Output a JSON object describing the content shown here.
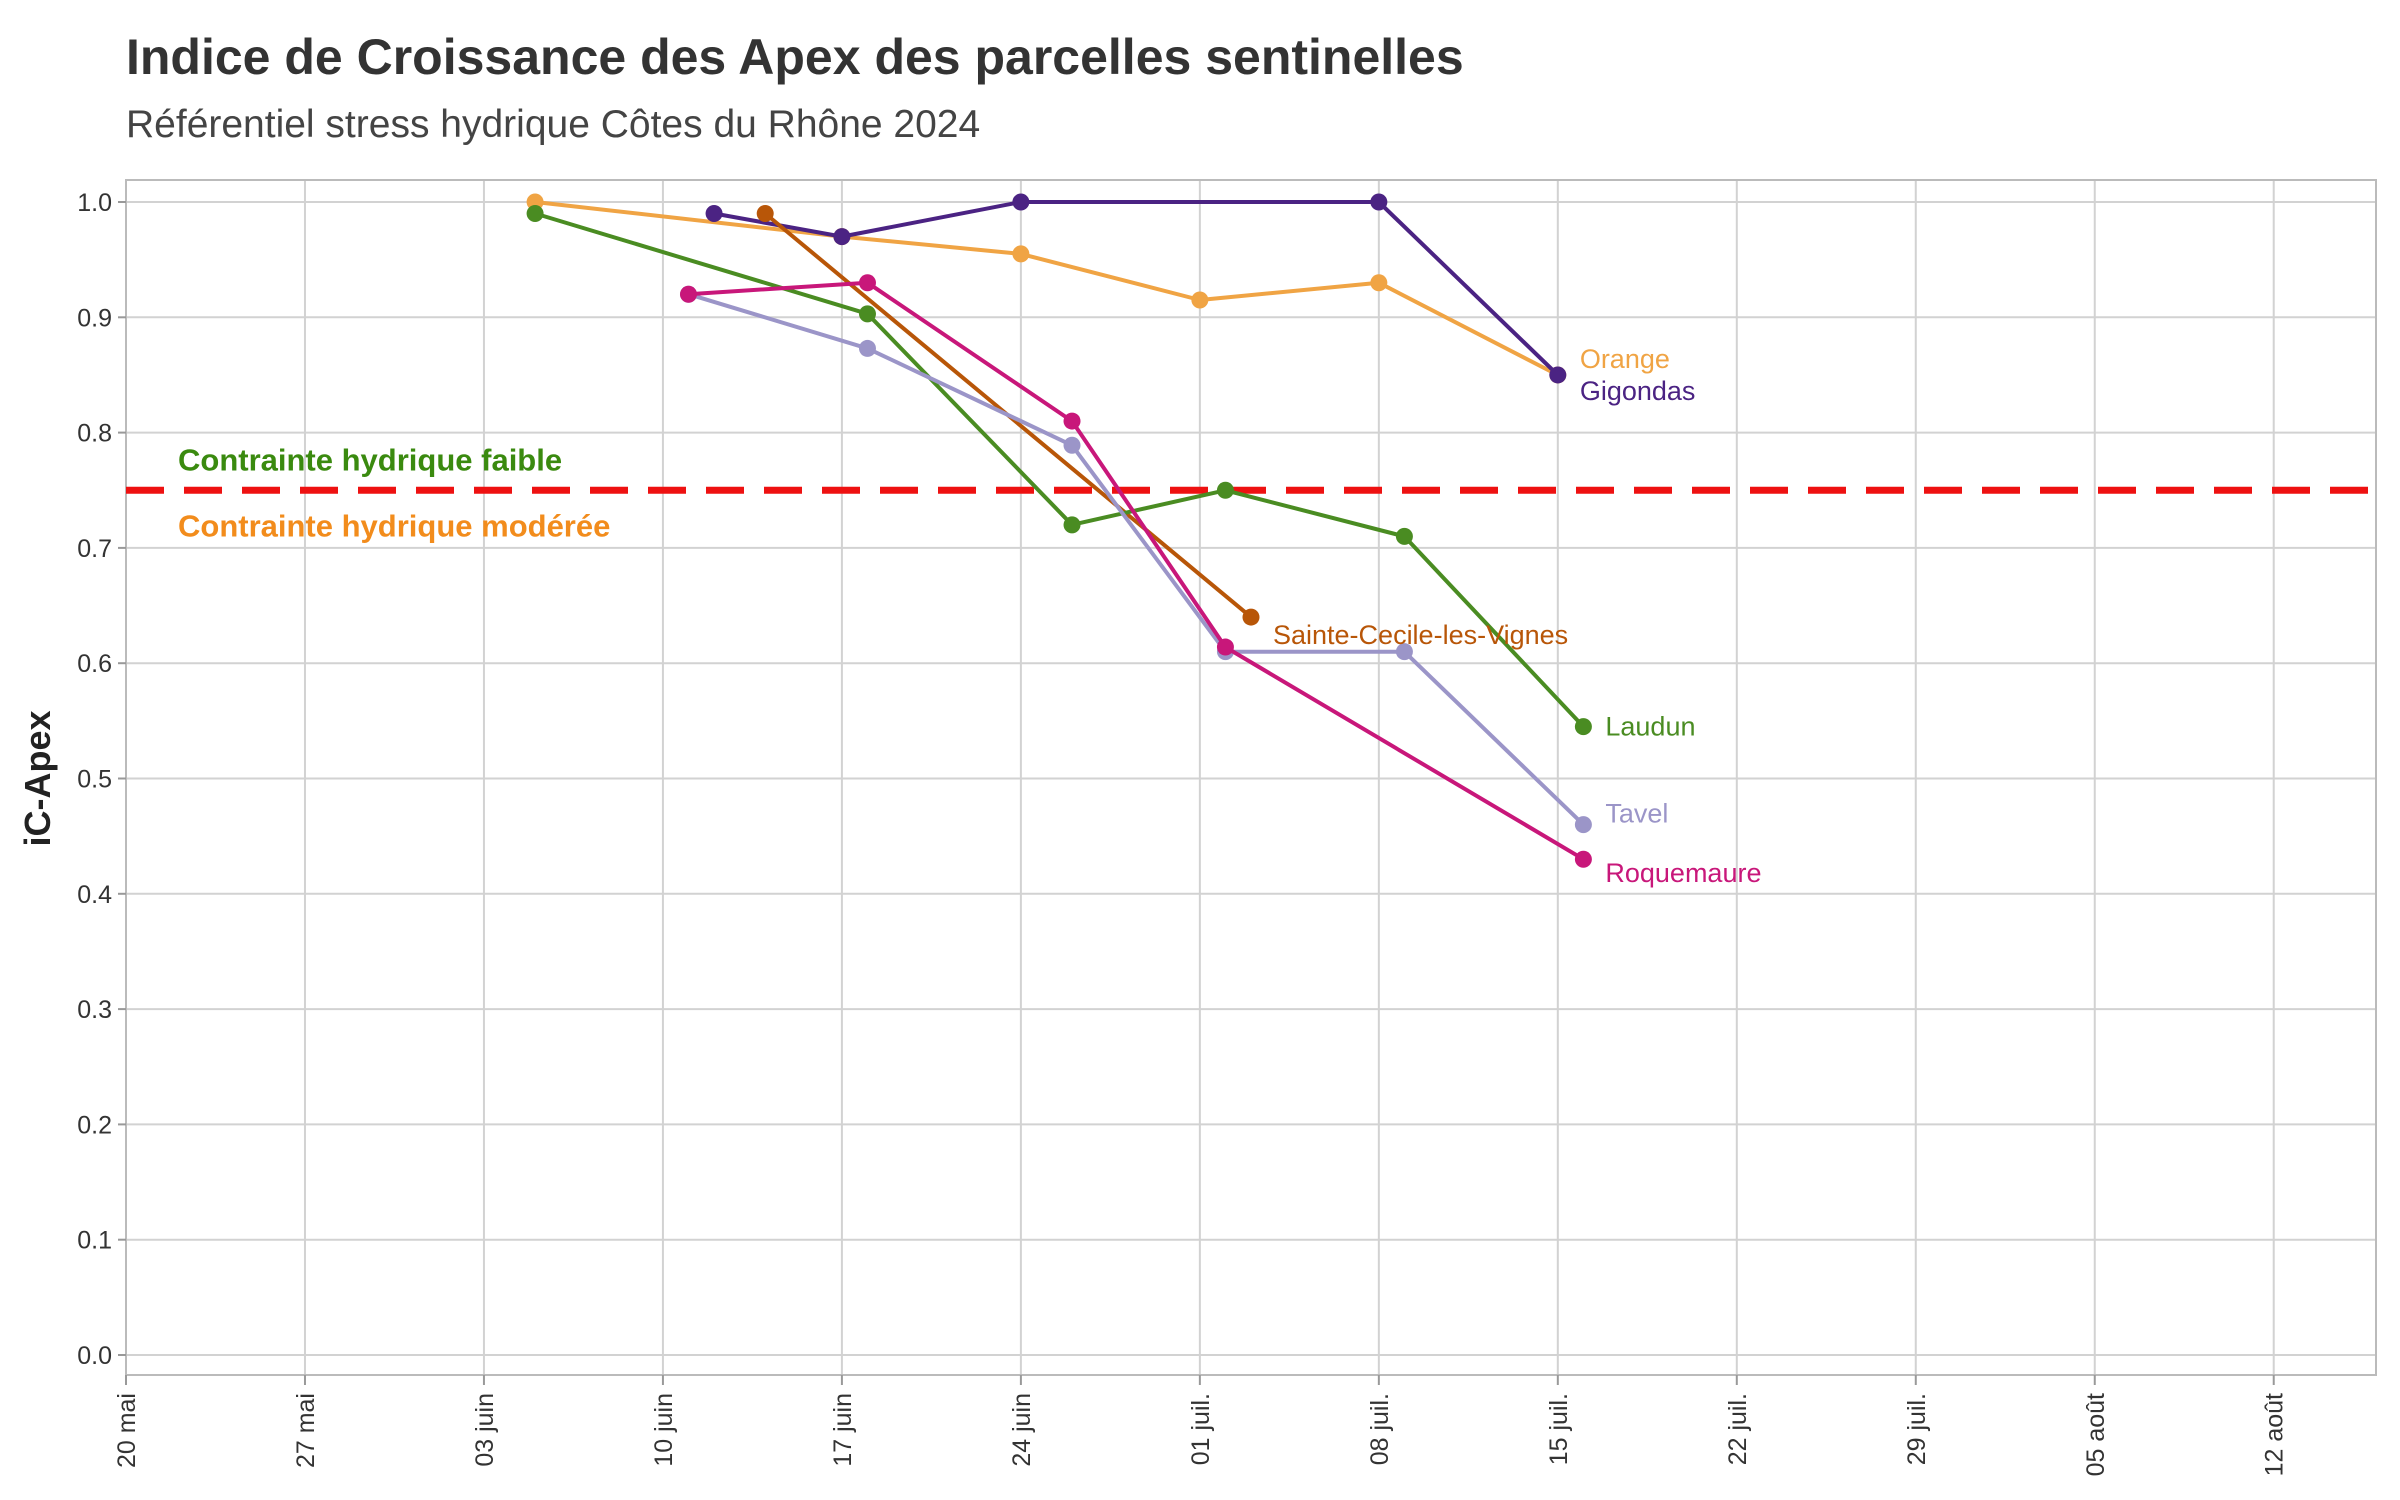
{
  "title": "Indice de Croissance des Apex des parcelles sentinelles",
  "subtitle": "Référentiel stress hydrique Côtes du Rhône 2024",
  "colors": {
    "threshold": "#ee1111",
    "zone_faible": "#3a8a0f",
    "zone_moderee": "#f28c1c",
    "grid": "#d2d2d2"
  },
  "chart_data": {
    "type": "line",
    "title": "Indice de Croissance des Apex des parcelles sentinelles",
    "subtitle": "Référentiel stress hydrique Côtes du Rhône 2024",
    "xlabel": "",
    "ylabel": "iC-Apex",
    "x_type": "date",
    "xlim": [
      "2024-05-20",
      "2024-08-16"
    ],
    "x_ticks": [
      "2024-05-20",
      "2024-05-27",
      "2024-06-03",
      "2024-06-10",
      "2024-06-17",
      "2024-06-24",
      "2024-07-01",
      "2024-07-08",
      "2024-07-15",
      "2024-07-22",
      "2024-07-29",
      "2024-08-05",
      "2024-08-12"
    ],
    "x_tick_labels": [
      "20 mai",
      "27 mai",
      "03 juin",
      "10 juin",
      "17 juin",
      "24 juin",
      "01 juil.",
      "08 juil.",
      "15 juil.",
      "22 juil.",
      "29 juil.",
      "05 août",
      "12 août"
    ],
    "ylim": [
      0,
      1
    ],
    "y_ticks": [
      0,
      0.1,
      0.2,
      0.3,
      0.4,
      0.5,
      0.6,
      0.7,
      0.8,
      0.9,
      1.0
    ],
    "y_tick_labels": [
      "0.0",
      "0.1",
      "0.2",
      "0.3",
      "0.4",
      "0.5",
      "0.6",
      "0.7",
      "0.8",
      "0.9",
      "1.0"
    ],
    "grid": true,
    "legend": "direct labels at line ends",
    "threshold": {
      "value": 0.75,
      "style": "dashed",
      "color": "#ee1111",
      "label_above": "Contrainte hydrique faible",
      "label_below": "Contrainte hydrique modérée"
    },
    "series": [
      {
        "name": "Orange",
        "color": "#f0a444",
        "points": [
          [
            "2024-06-05",
            1.0
          ],
          [
            "2024-06-17",
            0.97
          ],
          [
            "2024-06-24",
            0.955
          ],
          [
            "2024-07-01",
            0.915
          ],
          [
            "2024-07-08",
            0.93
          ],
          [
            "2024-07-15",
            0.85
          ]
        ]
      },
      {
        "name": "Gigondas",
        "color": "#4b2383",
        "points": [
          [
            "2024-06-12",
            0.99
          ],
          [
            "2024-06-17",
            0.97
          ],
          [
            "2024-06-24",
            1.0
          ],
          [
            "2024-07-08",
            1.0
          ],
          [
            "2024-07-15",
            0.85
          ]
        ]
      },
      {
        "name": "Sainte-Cecile-les-Vignes",
        "color": "#b85608",
        "points": [
          [
            "2024-06-14",
            0.99
          ],
          [
            "2024-07-03",
            0.64
          ]
        ]
      },
      {
        "name": "Laudun",
        "color": "#4a8c22",
        "points": [
          [
            "2024-06-05",
            0.99
          ],
          [
            "2024-06-18",
            0.903
          ],
          [
            "2024-06-26",
            0.72
          ],
          [
            "2024-07-02",
            0.75
          ],
          [
            "2024-07-09",
            0.71
          ],
          [
            "2024-07-16",
            0.545
          ]
        ]
      },
      {
        "name": "Tavel",
        "color": "#9b95c8",
        "points": [
          [
            "2024-06-11",
            0.92
          ],
          [
            "2024-06-18",
            0.873
          ],
          [
            "2024-06-26",
            0.789
          ],
          [
            "2024-07-02",
            0.61
          ],
          [
            "2024-07-09",
            0.61
          ],
          [
            "2024-07-16",
            0.46
          ]
        ]
      },
      {
        "name": "Roquemaure",
        "color": "#c8177a",
        "points": [
          [
            "2024-06-11",
            0.92
          ],
          [
            "2024-06-18",
            0.93
          ],
          [
            "2024-06-26",
            0.81
          ],
          [
            "2024-07-02",
            0.614
          ],
          [
            "2024-07-16",
            0.43
          ]
        ]
      }
    ]
  }
}
